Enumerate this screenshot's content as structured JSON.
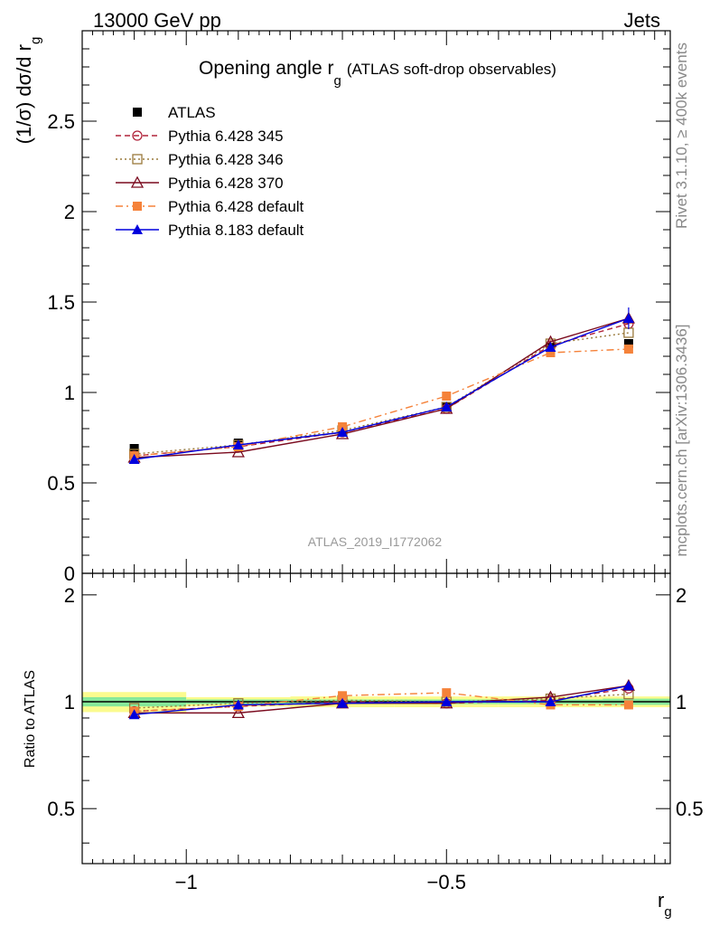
{
  "header": {
    "left": "13000 GeV pp",
    "right": "Jets"
  },
  "side_labels": {
    "rivet": "Rivet 3.1.10, ≥ 400k events",
    "mcplots": "mcplots.cern.ch [arXiv:1306.3436]"
  },
  "watermark": "ATLAS_2019_I1772062",
  "chart_data": [
    {
      "panel": "main",
      "type": "line",
      "title": "Opening angle r",
      "title_sub": "g",
      "title_suffix": "(ATLAS soft-drop observables)",
      "ylabel": "(1/σ) dσ/d r",
      "ylabel_sub": "g",
      "xlabel": "r",
      "xlabel_sub": "g",
      "xlim": [
        -1.2,
        -0.07
      ],
      "ylim": [
        0,
        3.0
      ],
      "x_ticks": [
        -1,
        -0.5
      ],
      "x_tick_labels": [
        "−1",
        "−0.5"
      ],
      "y_ticks": [
        0,
        0.5,
        1,
        1.5,
        2,
        2.5
      ],
      "y_tick_labels": [
        "0",
        "0.5",
        "1",
        "1.5",
        "2",
        "2.5"
      ],
      "x": [
        -1.1,
        -0.9,
        -0.7,
        -0.5,
        -0.3,
        -0.15
      ],
      "legend_position": "top-left",
      "series": [
        {
          "name": "ATLAS",
          "color": "#000000",
          "marker": "square-filled",
          "line": "none",
          "values": [
            0.69,
            0.72,
            0.78,
            0.92,
            1.25,
            1.27
          ]
        },
        {
          "name": "Pythia 6.428 345",
          "color": "#b0233a",
          "marker": "circle-open",
          "line": "dashed",
          "values": [
            0.65,
            0.7,
            0.78,
            0.91,
            1.26,
            1.38
          ]
        },
        {
          "name": "Pythia 6.428 346",
          "color": "#9a7a3c",
          "marker": "square-open",
          "line": "dotted",
          "values": [
            0.66,
            0.71,
            0.79,
            0.92,
            1.27,
            1.33
          ]
        },
        {
          "name": "Pythia 6.428 370",
          "color": "#7a0a1e",
          "marker": "triangle-open",
          "line": "solid",
          "values": [
            0.64,
            0.67,
            0.77,
            0.91,
            1.28,
            1.41
          ]
        },
        {
          "name": "Pythia 6.428 default",
          "color": "#f5823a",
          "marker": "square-filled",
          "line": "dashdot",
          "values": [
            0.65,
            0.7,
            0.81,
            0.98,
            1.22,
            1.24
          ]
        },
        {
          "name": "Pythia 8.183 default",
          "color": "#0000dd",
          "marker": "triangle-filled",
          "line": "solid",
          "values": [
            0.63,
            0.71,
            0.78,
            0.92,
            1.25,
            1.41
          ]
        }
      ]
    },
    {
      "panel": "ratio",
      "type": "line",
      "ylabel": "Ratio to ATLAS",
      "xlim": [
        -1.2,
        -0.07
      ],
      "ylim": [
        0.35,
        2.3
      ],
      "y_ticks": [
        0.5,
        1,
        2
      ],
      "y_tick_labels": [
        "0.5",
        "1",
        "2"
      ],
      "x": [
        -1.1,
        -0.9,
        -0.7,
        -0.5,
        -0.3,
        -0.15
      ],
      "bands": {
        "bins": [
          [
            -1.2,
            -1.0
          ],
          [
            -1.0,
            -0.8
          ],
          [
            -0.8,
            -0.6
          ],
          [
            -0.6,
            -0.4
          ],
          [
            -0.4,
            -0.2
          ],
          [
            -0.2,
            -0.07
          ]
        ],
        "inner": [
          [
            0.97,
            1.03
          ],
          [
            0.985,
            1.015
          ],
          [
            0.985,
            1.015
          ],
          [
            0.985,
            1.015
          ],
          [
            0.985,
            1.015
          ],
          [
            0.98,
            1.02
          ]
        ],
        "outer": [
          [
            0.935,
            1.065
          ],
          [
            0.97,
            1.03
          ],
          [
            0.965,
            1.035
          ],
          [
            0.965,
            1.035
          ],
          [
            0.965,
            1.035
          ],
          [
            0.965,
            1.035
          ]
        ],
        "inner_color": "#86e89a",
        "outer_color": "#fbfb8e"
      },
      "series": [
        {
          "name": "Pythia 6.428 345",
          "values": [
            0.94,
            0.97,
            1.0,
            0.99,
            1.01,
            1.09
          ]
        },
        {
          "name": "Pythia 6.428 346",
          "values": [
            0.96,
            0.99,
            1.01,
            1.0,
            1.02,
            1.05
          ]
        },
        {
          "name": "Pythia 6.428 370",
          "values": [
            0.93,
            0.93,
            0.99,
            0.99,
            1.03,
            1.11
          ]
        },
        {
          "name": "Pythia 6.428 default",
          "values": [
            0.94,
            0.97,
            1.04,
            1.06,
            0.98,
            0.98
          ]
        },
        {
          "name": "Pythia 8.183 default",
          "values": [
            0.92,
            0.98,
            0.99,
            1.0,
            1.0,
            1.11
          ]
        }
      ]
    }
  ]
}
